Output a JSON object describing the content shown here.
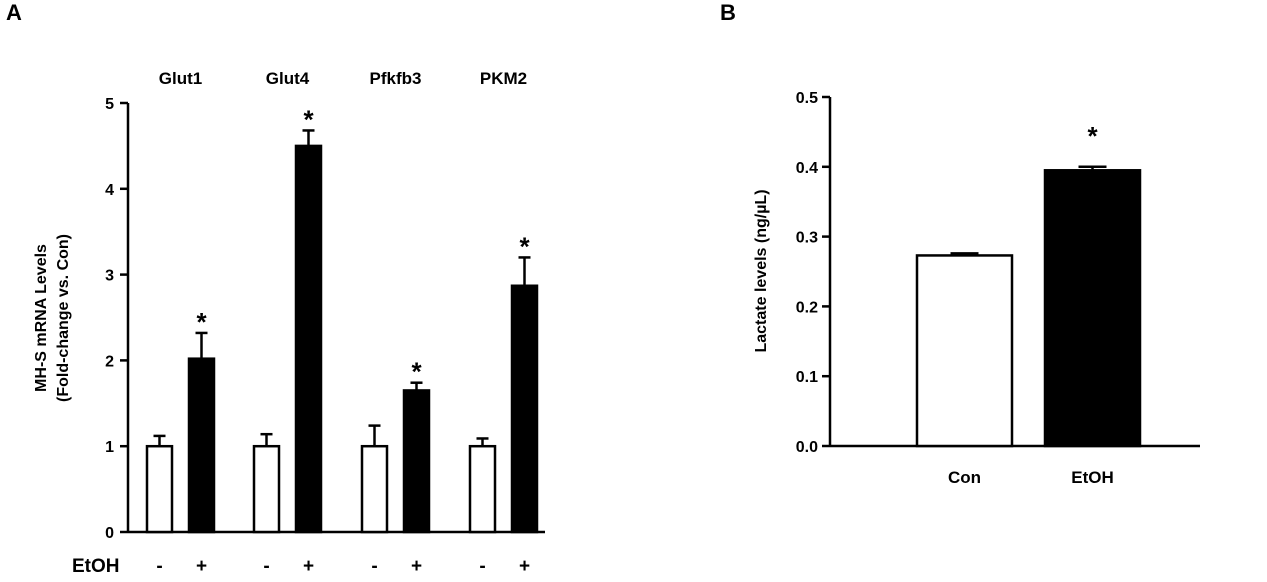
{
  "chart_data": [
    {
      "panel": "A",
      "type": "bar",
      "groups": [
        "Glut1",
        "Glut4",
        "Pfkfb3",
        "PKM2"
      ],
      "treatment_label": "EtOH",
      "treatment_levels": [
        "-",
        "+"
      ],
      "ylabel_line1": "MH-S mRNA Levels",
      "ylabel_line2": "(Fold-change vs. Con)",
      "ylim": [
        0,
        5
      ],
      "yticks": [
        "0",
        "1",
        "2",
        "3",
        "4",
        "5"
      ],
      "series": [
        {
          "name": "",
          "fill": "#ffffff",
          "values": [
            1.0,
            1.0,
            1.0,
            1.0
          ],
          "errors": [
            0.12,
            0.14,
            0.24,
            0.09
          ]
        },
        {
          "name": "",
          "fill": "#000000",
          "values": [
            2.02,
            4.5,
            1.65,
            2.87
          ],
          "errors": [
            0.3,
            0.18,
            0.09,
            0.33
          ]
        }
      ],
      "significance": [
        "*",
        "*",
        "*",
        "*"
      ],
      "grid": false
    },
    {
      "panel": "B",
      "type": "bar",
      "categories": [
        "Con",
        "EtOH"
      ],
      "values": [
        0.273,
        0.395
      ],
      "errors": [
        0.003,
        0.005
      ],
      "fills": [
        "#ffffff",
        "#000000"
      ],
      "ylabel": "Lactate levels (ng/µL)",
      "ylim": [
        0,
        0.5
      ],
      "yticks": [
        "0.0",
        "0.1",
        "0.2",
        "0.3",
        "0.4",
        "0.5"
      ],
      "significance": [
        "",
        "*"
      ],
      "grid": false
    }
  ]
}
